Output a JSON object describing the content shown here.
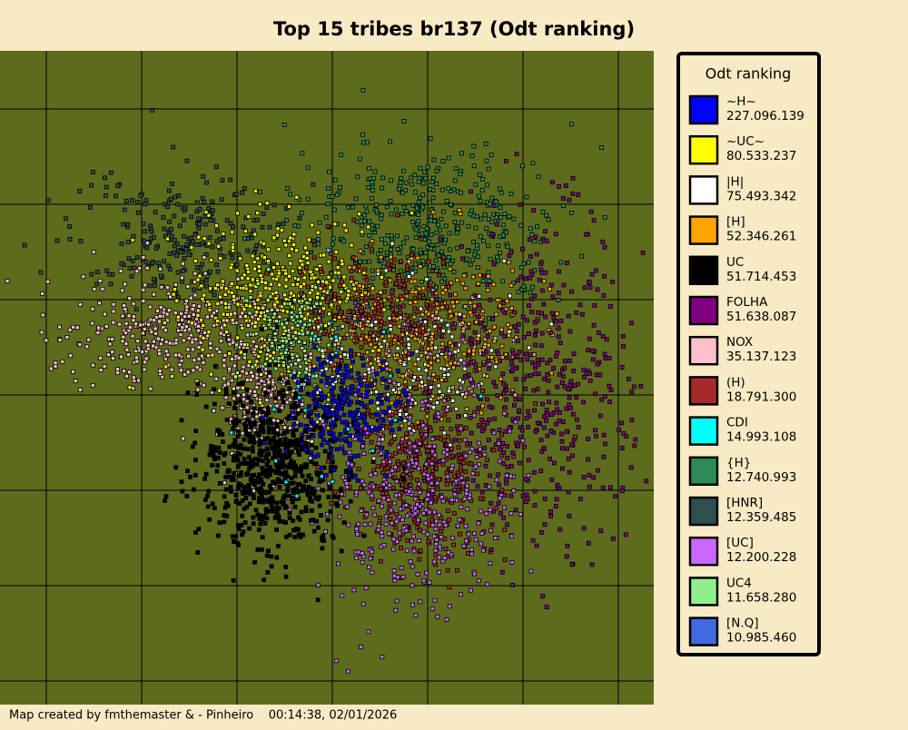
{
  "title": "Top 15 tribes br137 (Odt ranking)",
  "legend": {
    "title": "Odt ranking",
    "entries": [
      {
        "name": "~H~",
        "points": "227.096.139",
        "color": "#0000ff"
      },
      {
        "name": "~UC~",
        "points": "80.533.237",
        "color": "#ffff00"
      },
      {
        "name": "|H|",
        "points": "75.493.342",
        "color": "#ffffff"
      },
      {
        "name": "[H]",
        "points": "52.346.261",
        "color": "#ffa500"
      },
      {
        "name": "UC",
        "points": "51.714.453",
        "color": "#000000"
      },
      {
        "name": "FOLHA",
        "points": "51.638.087",
        "color": "#800080"
      },
      {
        "name": "NOX",
        "points": "35.137.123",
        "color": "#ffc0cb"
      },
      {
        "name": "(H)",
        "points": "18.791.300",
        "color": "#a52a2a"
      },
      {
        "name": "CDI",
        "points": "14.993.108",
        "color": "#00ffff"
      },
      {
        "name": "{H}",
        "points": "12.740.993",
        "color": "#2e8b57"
      },
      {
        "name": "[HNR]",
        "points": "12.359.485",
        "color": "#2f4f4f"
      },
      {
        "name": "[UC]",
        "points": "12.200.228",
        "color": "#cc66ff"
      },
      {
        "name": "UC4",
        "points": "11.658.280",
        "color": "#90ee90"
      },
      {
        "name": "[N.Q]",
        "points": "10.985.460",
        "color": "#4169e1"
      }
    ]
  },
  "footer": "Map created by fmthemaster & - Pinheiro    00:14:38, 02/01/2026"
}
